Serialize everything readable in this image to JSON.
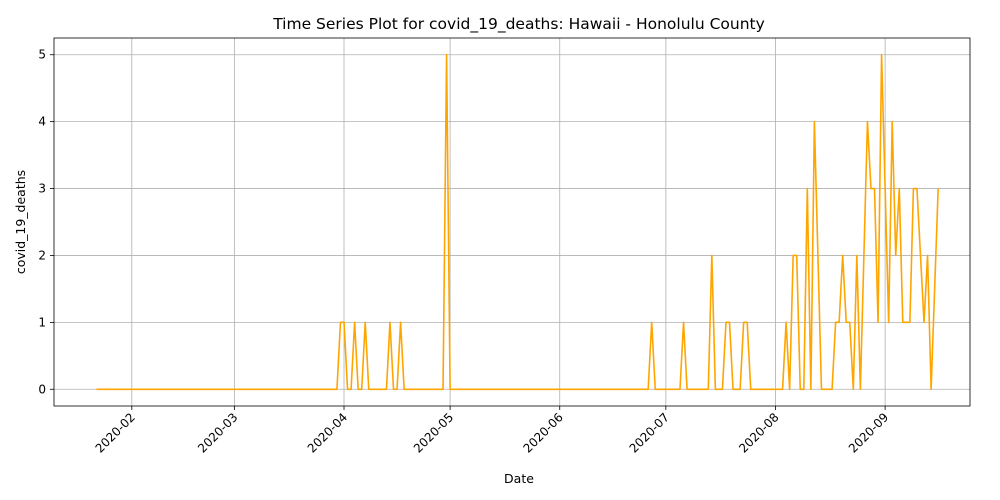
{
  "chart_data": {
    "type": "line",
    "title": "Time Series Plot for covid_19_deaths: Hawaii - Honolulu County",
    "xlabel": "Date",
    "ylabel": "covid_19_deaths",
    "xlim": [
      "2020-01-10",
      "2020-09-25"
    ],
    "ylim": [
      -0.25,
      5.25
    ],
    "grid": true,
    "x_ticks": [
      "2020-02",
      "2020-03",
      "2020-04",
      "2020-05",
      "2020-06",
      "2020-07",
      "2020-08",
      "2020-09"
    ],
    "y_ticks": [
      "0",
      "1",
      "2",
      "3",
      "4",
      "5"
    ],
    "series": [
      {
        "color": "#ffa500",
        "points": [
          [
            "2020-01-22",
            0
          ],
          [
            "2020-03-30",
            0
          ],
          [
            "2020-03-31",
            1
          ],
          [
            "2020-04-01",
            1
          ],
          [
            "2020-04-02",
            0
          ],
          [
            "2020-04-03",
            0
          ],
          [
            "2020-04-04",
            1
          ],
          [
            "2020-04-05",
            0
          ],
          [
            "2020-04-06",
            0
          ],
          [
            "2020-04-07",
            1
          ],
          [
            "2020-04-08",
            0
          ],
          [
            "2020-04-13",
            0
          ],
          [
            "2020-04-14",
            1
          ],
          [
            "2020-04-15",
            0
          ],
          [
            "2020-04-16",
            0
          ],
          [
            "2020-04-17",
            1
          ],
          [
            "2020-04-18",
            0
          ],
          [
            "2020-04-29",
            0
          ],
          [
            "2020-04-30",
            5
          ],
          [
            "2020-05-01",
            0
          ],
          [
            "2020-06-26",
            0
          ],
          [
            "2020-06-27",
            1
          ],
          [
            "2020-06-28",
            0
          ],
          [
            "2020-07-05",
            0
          ],
          [
            "2020-07-06",
            1
          ],
          [
            "2020-07-07",
            0
          ],
          [
            "2020-07-13",
            0
          ],
          [
            "2020-07-14",
            2
          ],
          [
            "2020-07-15",
            0
          ],
          [
            "2020-07-17",
            0
          ],
          [
            "2020-07-18",
            1
          ],
          [
            "2020-07-19",
            1
          ],
          [
            "2020-07-20",
            0
          ],
          [
            "2020-07-22",
            0
          ],
          [
            "2020-07-23",
            1
          ],
          [
            "2020-07-24",
            1
          ],
          [
            "2020-07-25",
            0
          ],
          [
            "2020-08-03",
            0
          ],
          [
            "2020-08-04",
            1
          ],
          [
            "2020-08-05",
            0
          ],
          [
            "2020-08-06",
            2
          ],
          [
            "2020-08-07",
            2
          ],
          [
            "2020-08-08",
            0
          ],
          [
            "2020-08-09",
            0
          ],
          [
            "2020-08-10",
            3
          ],
          [
            "2020-08-11",
            0
          ],
          [
            "2020-08-12",
            4
          ],
          [
            "2020-08-13",
            2
          ],
          [
            "2020-08-14",
            0
          ],
          [
            "2020-08-17",
            0
          ],
          [
            "2020-08-18",
            1
          ],
          [
            "2020-08-19",
            1
          ],
          [
            "2020-08-20",
            2
          ],
          [
            "2020-08-21",
            1
          ],
          [
            "2020-08-22",
            1
          ],
          [
            "2020-08-23",
            0
          ],
          [
            "2020-08-24",
            2
          ],
          [
            "2020-08-25",
            0
          ],
          [
            "2020-08-26",
            2
          ],
          [
            "2020-08-27",
            4
          ],
          [
            "2020-08-28",
            3
          ],
          [
            "2020-08-29",
            3
          ],
          [
            "2020-08-30",
            1
          ],
          [
            "2020-08-31",
            5
          ],
          [
            "2020-09-01",
            3
          ],
          [
            "2020-09-02",
            1
          ],
          [
            "2020-09-03",
            4
          ],
          [
            "2020-09-04",
            2
          ],
          [
            "2020-09-05",
            3
          ],
          [
            "2020-09-06",
            1
          ],
          [
            "2020-09-07",
            1
          ],
          [
            "2020-09-08",
            1
          ],
          [
            "2020-09-09",
            3
          ],
          [
            "2020-09-10",
            3
          ],
          [
            "2020-09-11",
            2
          ],
          [
            "2020-09-12",
            1
          ],
          [
            "2020-09-13",
            2
          ],
          [
            "2020-09-14",
            0
          ],
          [
            "2020-09-16",
            3
          ]
        ]
      }
    ]
  }
}
